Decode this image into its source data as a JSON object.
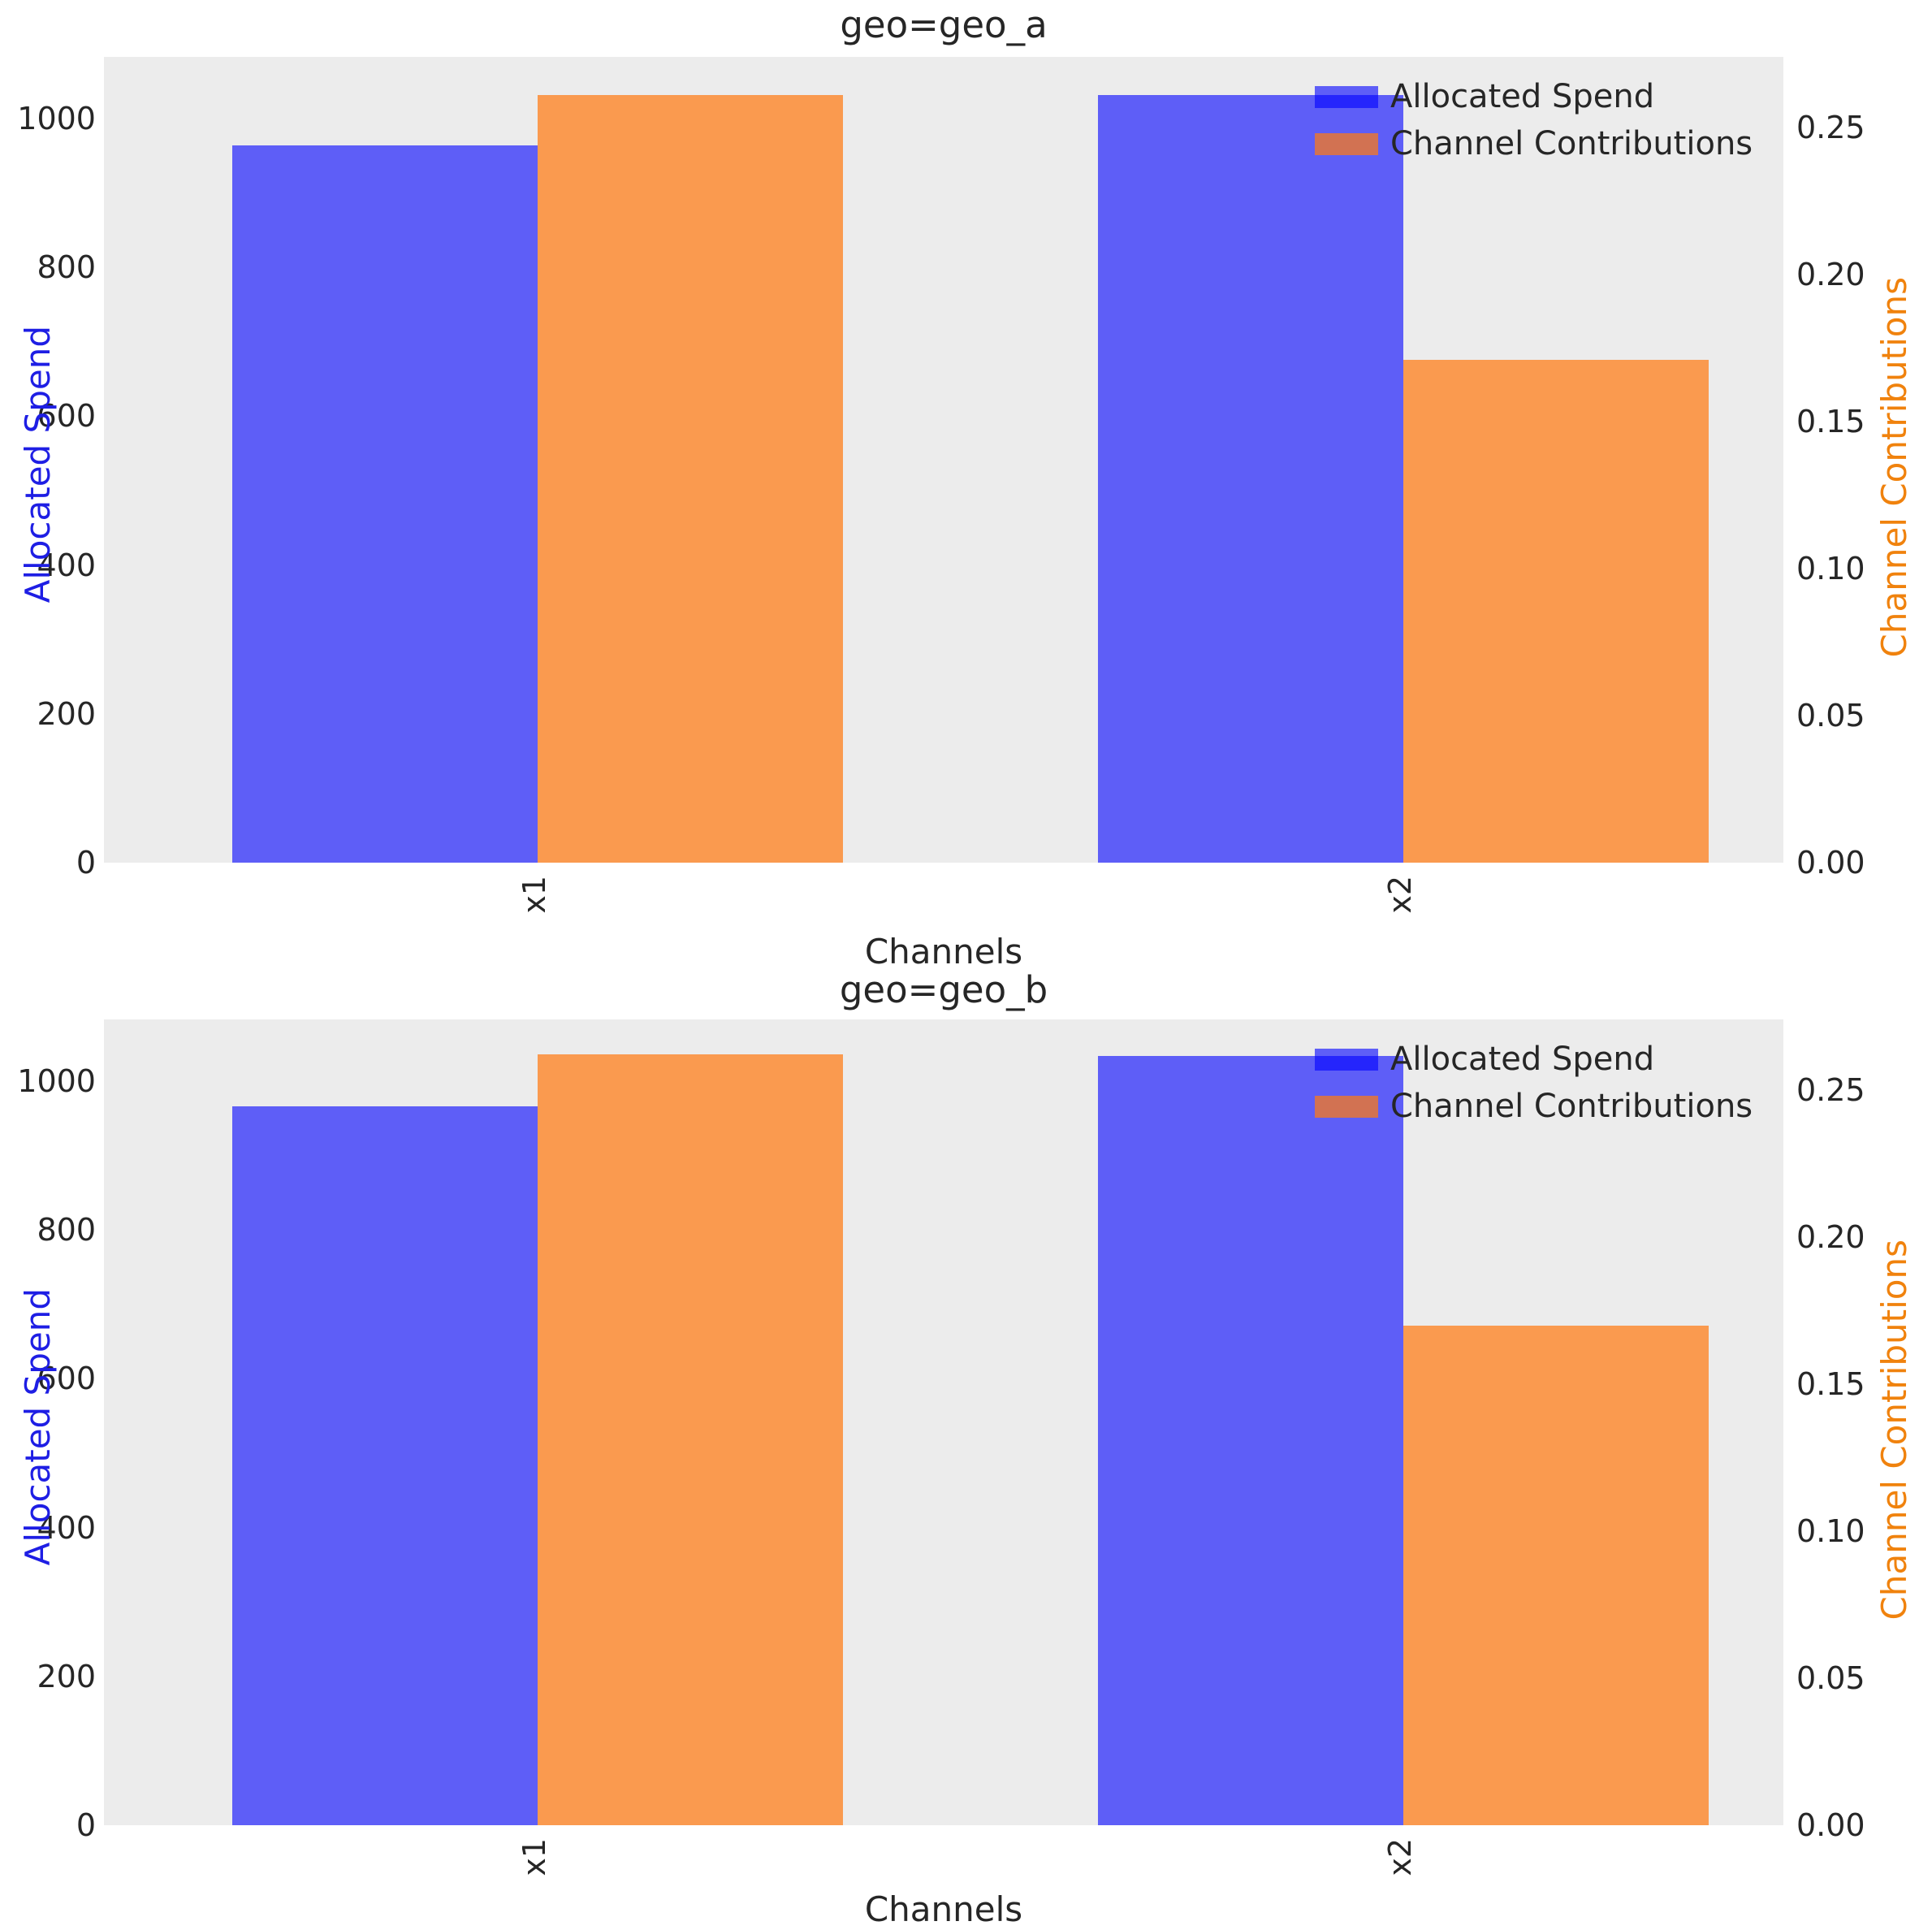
{
  "figure": {
    "background": "#ffffff",
    "axes_background": "#ececec",
    "colors": {
      "allocated_spend_bar": "rgba(0,0,255,0.6)",
      "channel_contributions_bar": "rgba(255,122,18,0.72)",
      "allocated_spend_axis_label": "#1e1ee4",
      "channel_contributions_axis_label": "#f0820d",
      "tick_text": "#262626"
    }
  },
  "chart_data": [
    {
      "type": "bar",
      "title": "geo=geo_a",
      "xlabel": "Channels",
      "ylabel_left": "Allocated Spend",
      "ylabel_right": "Channel Contributions",
      "categories": [
        "x1",
        "x2"
      ],
      "series": [
        {
          "name": "Allocated Spend",
          "axis": "left",
          "values": [
            964,
            1032
          ]
        },
        {
          "name": "Channel Contributions",
          "axis": "right",
          "values": [
            0.261,
            0.171
          ]
        }
      ],
      "ylim_left": [
        0,
        1083
      ],
      "ylim_right": [
        0,
        0.274
      ],
      "yticks_left": [
        0,
        200,
        400,
        600,
        800,
        1000
      ],
      "ytick_labels_left": [
        "0",
        "200",
        "400",
        "600",
        "800",
        "1000"
      ],
      "yticks_right": [
        0,
        0.05,
        0.1,
        0.15,
        0.2,
        0.25
      ],
      "ytick_labels_right": [
        "0.00",
        "0.05",
        "0.10",
        "0.15",
        "0.20",
        "0.25"
      ],
      "legend": {
        "position": "upper right",
        "entries": [
          "Allocated Spend",
          "Channel Contributions"
        ]
      },
      "grid": false
    },
    {
      "type": "bar",
      "title": "geo=geo_b",
      "xlabel": "Channels",
      "ylabel_left": "Allocated Spend",
      "ylabel_right": "Channel Contributions",
      "categories": [
        "x1",
        "x2"
      ],
      "series": [
        {
          "name": "Allocated Spend",
          "axis": "left",
          "values": [
            966,
            1034
          ]
        },
        {
          "name": "Channel Contributions",
          "axis": "right",
          "values": [
            0.262,
            0.17
          ]
        }
      ],
      "ylim_left": [
        0,
        1083
      ],
      "ylim_right": [
        0,
        0.274
      ],
      "yticks_left": [
        0,
        200,
        400,
        600,
        800,
        1000
      ],
      "ytick_labels_left": [
        "0",
        "200",
        "400",
        "600",
        "800",
        "1000"
      ],
      "yticks_right": [
        0,
        0.05,
        0.1,
        0.15,
        0.2,
        0.25
      ],
      "ytick_labels_right": [
        "0.00",
        "0.05",
        "0.10",
        "0.15",
        "0.20",
        "0.25"
      ],
      "legend": {
        "position": "upper right",
        "entries": [
          "Allocated Spend",
          "Channel Contributions"
        ]
      },
      "grid": false
    }
  ]
}
